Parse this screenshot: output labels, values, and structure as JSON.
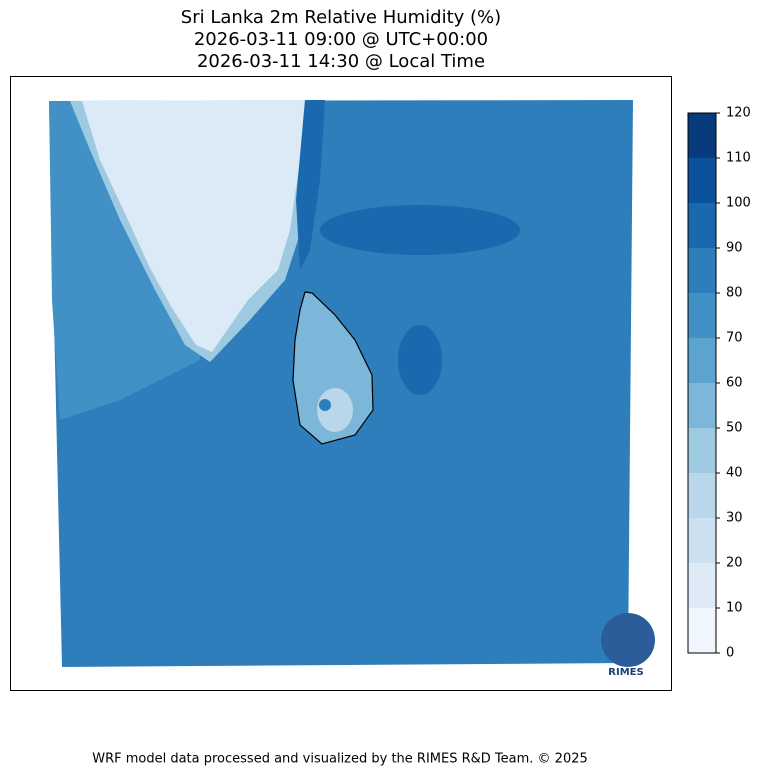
{
  "title": [
    "Sri Lanka 2m Relative Humidity (%)",
    "2026-03-11 09:00 @ UTC+00:00",
    "2026-03-11 14:30 @ Local Time"
  ],
  "colorbar": {
    "ticks": [
      0,
      10,
      20,
      30,
      40,
      50,
      60,
      70,
      80,
      90,
      100,
      110,
      120
    ],
    "colors": [
      "#f0f6fd",
      "#deebf7",
      "#cde0f1",
      "#b9d6ea",
      "#9dc9e1",
      "#7cb7da",
      "#5ca3d0",
      "#4190c6",
      "#2e7ebc",
      "#1a68ae",
      "#0b519b",
      "#083b7c"
    ]
  },
  "logo": "RIMES",
  "footer": "WRF model data processed and visualized by the RIMES R&D Team. © 2025"
}
